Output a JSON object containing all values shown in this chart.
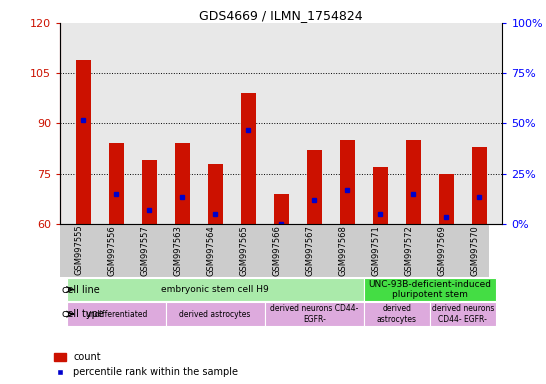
{
  "title": "GDS4669 / ILMN_1754824",
  "samples": [
    "GSM997555",
    "GSM997556",
    "GSM997557",
    "GSM997563",
    "GSM997564",
    "GSM997565",
    "GSM997566",
    "GSM997567",
    "GSM997568",
    "GSM997571",
    "GSM997572",
    "GSM997569",
    "GSM997570"
  ],
  "count_values": [
    109,
    84,
    79,
    84,
    78,
    99,
    69,
    82,
    85,
    77,
    85,
    75,
    83
  ],
  "percentile_values": [
    91,
    69,
    64,
    68,
    63,
    88,
    60,
    67,
    70,
    63,
    69,
    62,
    68
  ],
  "ymin": 60,
  "ymax": 120,
  "yticks": [
    60,
    75,
    90,
    105,
    120
  ],
  "bar_color": "#cc1100",
  "marker_color": "#0000cc",
  "plot_bg": "#e8e8e8",
  "cell_line_groups": [
    {
      "label": "embryonic stem cell H9",
      "start": 0,
      "end": 9,
      "color": "#aaeaaa"
    },
    {
      "label": "UNC-93B-deficient-induced\npluripotent stem",
      "start": 9,
      "end": 13,
      "color": "#44dd44"
    }
  ],
  "cell_type_groups": [
    {
      "label": "undifferentiated",
      "start": 0,
      "end": 3,
      "color": "#ddaadd"
    },
    {
      "label": "derived astrocytes",
      "start": 3,
      "end": 6,
      "color": "#ddaadd"
    },
    {
      "label": "derived neurons CD44-\nEGFR-",
      "start": 6,
      "end": 9,
      "color": "#ddaadd"
    },
    {
      "label": "derived\nastrocytes",
      "start": 9,
      "end": 11,
      "color": "#ddaadd"
    },
    {
      "label": "derived neurons\nCD44- EGFR-",
      "start": 11,
      "end": 13,
      "color": "#ddaadd"
    }
  ],
  "bar_width": 0.45
}
